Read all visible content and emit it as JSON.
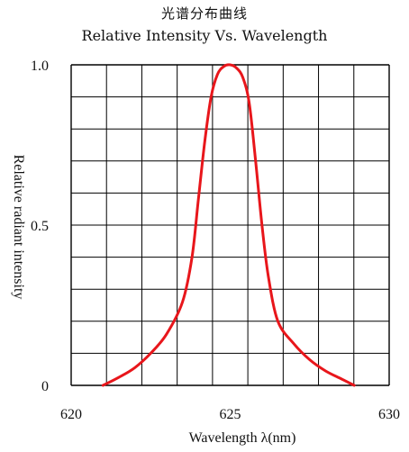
{
  "chart_data": {
    "type": "line",
    "title": "光谱分布曲线",
    "subtitle": "Relative Intensity Vs. Wavelength",
    "xlabel": "Wavelength λ(nm)",
    "ylabel": "Relative radiant intensity",
    "xlim": [
      620,
      630
    ],
    "ylim": [
      0,
      1.0
    ],
    "x_ticks": [
      "620",
      "625",
      "630"
    ],
    "y_ticks": [
      "0",
      "0.5",
      "1.0"
    ],
    "x_tick_values": [
      620,
      625,
      630
    ],
    "y_tick_values": [
      0,
      0.5,
      1.0
    ],
    "grid": true,
    "grid_x_divisions": 9,
    "grid_y_divisions": 10,
    "line_color": "#e8161b",
    "grid_color": "#000000",
    "series": [
      {
        "x": [
          621.0,
          621.5,
          622.0,
          622.5,
          623.0,
          623.5,
          623.8,
          624.0,
          624.2,
          624.4,
          624.6,
          624.8,
          625.0,
          625.2,
          625.4,
          625.6,
          625.8,
          626.0,
          626.2,
          626.5,
          627.0,
          627.5,
          628.0,
          628.5,
          628.9
        ],
        "values": [
          0.0,
          0.025,
          0.055,
          0.1,
          0.16,
          0.26,
          0.4,
          0.58,
          0.76,
          0.9,
          0.97,
          0.995,
          1.0,
          0.99,
          0.96,
          0.88,
          0.7,
          0.5,
          0.34,
          0.2,
          0.13,
          0.08,
          0.045,
          0.02,
          0.0
        ]
      }
    ]
  }
}
